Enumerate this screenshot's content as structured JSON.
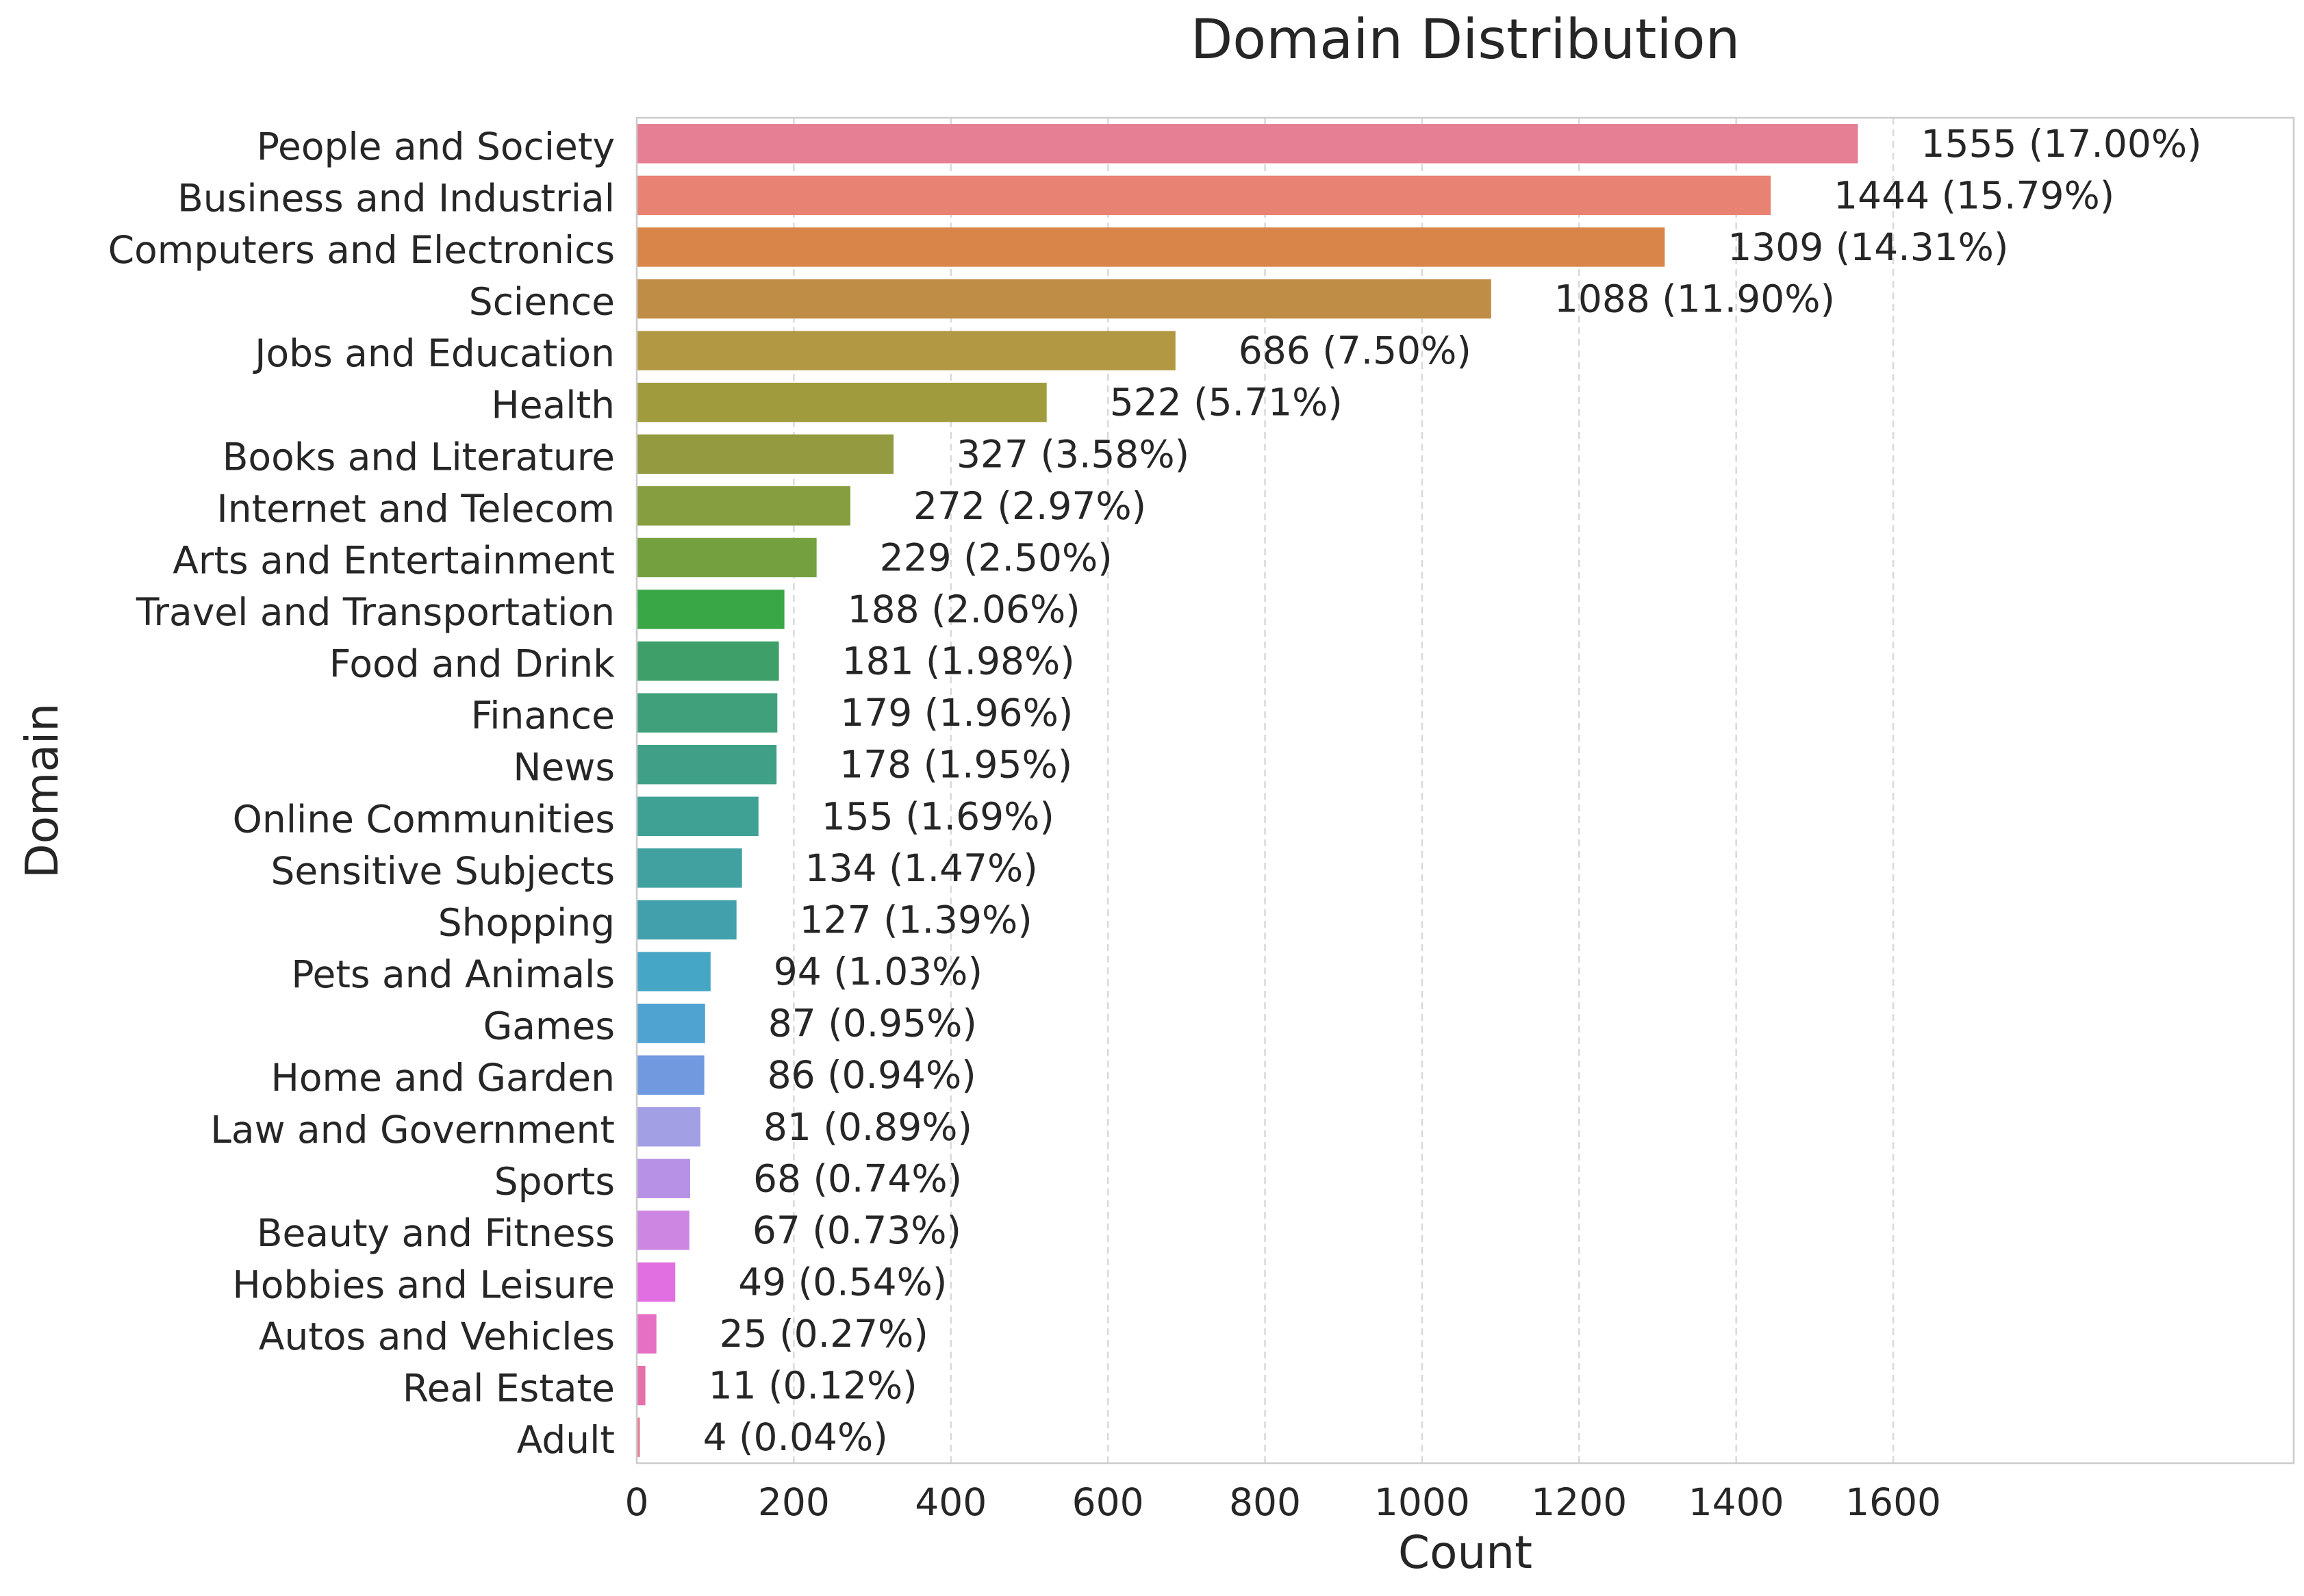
{
  "chart_data": {
    "type": "bar",
    "orientation": "horizontal",
    "title": "Domain Distribution",
    "xlabel": "Count",
    "ylabel": "Domain",
    "xlim": [
      0,
      2110
    ],
    "xticks": [
      0,
      200,
      400,
      600,
      800,
      1000,
      1200,
      1400,
      1600
    ],
    "grid": "x-dashed",
    "categories": [
      "People and Society",
      "Business and Industrial",
      "Computers and Electronics",
      "Science",
      "Jobs and Education",
      "Health",
      "Books and Literature",
      "Internet and Telecom",
      "Arts and Entertainment",
      "Travel and Transportation",
      "Food and Drink",
      "Finance",
      "News",
      "Online Communities",
      "Sensitive Subjects",
      "Shopping",
      "Pets and Animals",
      "Games",
      "Home and Garden",
      "Law and Government",
      "Sports",
      "Beauty and Fitness",
      "Hobbies and Leisure",
      "Autos and Vehicles",
      "Real Estate",
      "Adult"
    ],
    "values": [
      1555,
      1444,
      1309,
      1088,
      686,
      522,
      327,
      272,
      229,
      188,
      181,
      179,
      178,
      155,
      134,
      127,
      94,
      87,
      86,
      81,
      68,
      67,
      49,
      25,
      11,
      4
    ],
    "data_labels": [
      "1555 (17.00%)",
      "1444 (15.79%)",
      "1309 (14.31%)",
      "1088 (11.90%)",
      "686 (7.50%)",
      "522 (5.71%)",
      "327 (3.58%)",
      "272 (2.97%)",
      "229 (2.50%)",
      "188 (2.06%)",
      "181 (1.98%)",
      "179 (1.96%)",
      "178 (1.95%)",
      "155 (1.69%)",
      "134 (1.47%)",
      "127 (1.39%)",
      "94 (1.03%)",
      "87 (0.95%)",
      "86 (0.94%)",
      "81 (0.89%)",
      "68 (0.74%)",
      "67 (0.73%)",
      "49 (0.54%)",
      "25 (0.27%)",
      "11 (0.12%)",
      "4 (0.04%)"
    ],
    "colors": [
      "#e77f94",
      "#e88273",
      "#d9854a",
      "#c08d46",
      "#b39844",
      "#a09c3e",
      "#939a3f",
      "#869e3f",
      "#75a03f",
      "#3aa746",
      "#3ea068",
      "#40a07b",
      "#3fa087",
      "#3fa194",
      "#41a1a0",
      "#42a0ad",
      "#46a6c6",
      "#4ea3d1",
      "#7099e0",
      "#a39fe5",
      "#b691e6",
      "#cd87e2",
      "#e26fe2",
      "#e670c4",
      "#e670aa",
      "#e77f94"
    ]
  }
}
